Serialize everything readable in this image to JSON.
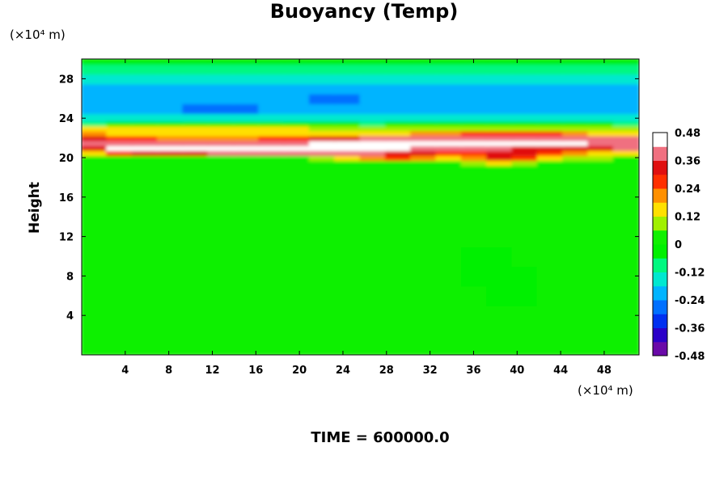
{
  "title": "Buoyancy (Temp)",
  "time_label": "TIME = 600000.0",
  "chart_data": {
    "type": "heatmap",
    "title": "Buoyancy (Temp)",
    "ylabel": "Height",
    "xunit": "(×10⁴ m)",
    "yunit": "(×10⁴ m)",
    "xlim": [
      0,
      51.2
    ],
    "ylim": [
      0,
      30
    ],
    "xticks": [
      4,
      8,
      12,
      16,
      20,
      24,
      28,
      32,
      36,
      40,
      44,
      48
    ],
    "yticks": [
      4,
      8,
      12,
      16,
      20,
      24,
      28
    ],
    "x_dim": 22,
    "y_height": [
      0,
      2,
      4,
      6,
      8,
      10,
      12,
      14,
      16,
      17,
      18,
      19,
      19.5,
      20,
      20.5,
      21,
      21.5,
      22,
      22.5,
      23,
      23.5,
      24,
      25,
      26,
      27,
      28,
      29,
      30
    ],
    "colorbar": {
      "levels": [
        0.48,
        0.36,
        0.24,
        0.12,
        0,
        -0.12,
        -0.24,
        -0.36,
        -0.48
      ],
      "min": -0.48,
      "max": 0.48,
      "colors": [
        "#6a0aa8",
        "#2b00c8",
        "#0030f0",
        "#0070ff",
        "#00b4ff",
        "#00e8d0",
        "#00f880",
        "#00f000",
        "#10f000",
        "#a0f000",
        "#ffe000",
        "#ff9000",
        "#ff3000",
        "#e01010",
        "#f07080",
        "#ffffff"
      ]
    },
    "grid": false,
    "values": [
      [
        0.0,
        0.0,
        0.0,
        0.0,
        0.0,
        0.0,
        0.0,
        0.0,
        0.0,
        0.0,
        0.0,
        0.0,
        0.0,
        0.0,
        0.0,
        0.0,
        0.0,
        0.0,
        0.0,
        0.0,
        0.0,
        0.0
      ],
      [
        0.0,
        0.0,
        0.0,
        0.0,
        0.0,
        0.0,
        0.0,
        0.0,
        0.0,
        0.0,
        0.0,
        0.0,
        0.0,
        0.0,
        0.0,
        0.0,
        0.0,
        0.0,
        0.0,
        0.0,
        0.0,
        0.0
      ],
      [
        0.0,
        0.0,
        0.0,
        0.0,
        0.0,
        0.0,
        0.0,
        0.0,
        0.0,
        0.0,
        0.0,
        0.0,
        0.0,
        0.0,
        0.0,
        0.0,
        0.0,
        0.0,
        0.0,
        0.0,
        0.0,
        0.0
      ],
      [
        0.0,
        0.0,
        0.0,
        0.0,
        0.0,
        0.0,
        0.0,
        0.0,
        0.0,
        0.0,
        0.0,
        0.0,
        0.0,
        0.0,
        0.0,
        0.0,
        -0.01,
        -0.02,
        0.0,
        0.0,
        0.0,
        0.0
      ],
      [
        0.0,
        0.0,
        0.0,
        0.0,
        0.0,
        0.0,
        0.0,
        0.0,
        0.0,
        0.0,
        0.0,
        0.0,
        0.0,
        0.0,
        0.0,
        -0.02,
        -0.03,
        -0.02,
        0.0,
        0.0,
        0.0,
        0.0
      ],
      [
        0.0,
        0.0,
        0.0,
        0.0,
        0.0,
        0.0,
        0.0,
        0.0,
        0.0,
        0.0,
        0.0,
        0.0,
        0.0,
        0.0,
        0.0,
        -0.02,
        -0.02,
        0.0,
        0.0,
        0.0,
        0.0,
        0.0
      ],
      [
        0.0,
        0.0,
        0.0,
        0.0,
        0.0,
        0.0,
        0.0,
        0.0,
        0.0,
        0.0,
        0.0,
        0.0,
        0.0,
        0.0,
        0.0,
        0.0,
        0.0,
        0.0,
        0.0,
        0.0,
        0.0,
        0.0
      ],
      [
        0.0,
        0.0,
        0.0,
        0.0,
        0.0,
        0.0,
        0.0,
        0.0,
        0.0,
        0.0,
        0.0,
        0.0,
        0.0,
        0.0,
        0.0,
        0.0,
        0.02,
        0.04,
        0.0,
        0.0,
        0.0,
        0.0
      ],
      [
        0.0,
        0.0,
        0.0,
        0.02,
        0.0,
        0.0,
        0.0,
        0.0,
        0.0,
        0.0,
        0.0,
        0.02,
        0.0,
        0.0,
        0.0,
        0.02,
        0.03,
        0.02,
        0.0,
        0.0,
        0.0,
        0.0
      ],
      [
        0.0,
        0.0,
        0.0,
        0.02,
        0.0,
        0.0,
        0.0,
        0.0,
        0.02,
        0.0,
        0.0,
        0.02,
        0.0,
        0.0,
        0.0,
        0.0,
        0.02,
        0.0,
        0.0,
        0.0,
        0.0,
        0.0
      ],
      [
        0.0,
        0.0,
        0.0,
        0.0,
        0.0,
        0.0,
        0.0,
        0.0,
        0.0,
        0.0,
        0.0,
        0.0,
        0.0,
        0.0,
        0.0,
        0.0,
        0.0,
        0.0,
        0.0,
        0.0,
        0.0,
        0.0
      ],
      [
        0.0,
        0.0,
        0.0,
        0.0,
        0.0,
        0.0,
        0.0,
        0.0,
        0.0,
        0.0,
        0.0,
        0.0,
        0.0,
        0.0,
        0.0,
        0.0,
        0.0,
        0.0,
        0.0,
        0.0,
        0.0,
        0.0
      ],
      [
        0.04,
        0.04,
        0.04,
        0.04,
        0.04,
        0.04,
        0.04,
        0.04,
        0.04,
        0.04,
        0.04,
        0.04,
        0.04,
        0.04,
        0.05,
        0.1,
        0.14,
        0.1,
        0.05,
        0.04,
        0.04,
        0.04
      ],
      [
        0.05,
        0.05,
        0.05,
        0.05,
        0.05,
        0.05,
        0.05,
        0.05,
        0.05,
        0.08,
        0.14,
        0.2,
        0.24,
        0.2,
        0.18,
        0.22,
        0.3,
        0.25,
        0.15,
        0.1,
        0.06,
        0.05
      ],
      [
        0.15,
        0.25,
        0.3,
        0.32,
        0.34,
        0.36,
        0.38,
        0.38,
        0.38,
        0.38,
        0.38,
        0.36,
        0.34,
        0.3,
        0.26,
        0.28,
        0.34,
        0.3,
        0.26,
        0.22,
        0.18,
        0.15
      ],
      [
        0.32,
        0.46,
        0.48,
        0.48,
        0.48,
        0.48,
        0.48,
        0.48,
        0.46,
        0.44,
        0.44,
        0.44,
        0.44,
        0.42,
        0.42,
        0.38,
        0.36,
        0.32,
        0.3,
        0.32,
        0.34,
        0.36
      ],
      [
        0.36,
        0.42,
        0.42,
        0.4,
        0.38,
        0.38,
        0.38,
        0.4,
        0.42,
        0.44,
        0.46,
        0.48,
        0.48,
        0.48,
        0.48,
        0.48,
        0.48,
        0.48,
        0.46,
        0.44,
        0.42,
        0.36
      ],
      [
        0.34,
        0.28,
        0.24,
        0.2,
        0.2,
        0.2,
        0.2,
        0.24,
        0.26,
        0.3,
        0.34,
        0.38,
        0.4,
        0.42,
        0.42,
        0.42,
        0.42,
        0.42,
        0.42,
        0.4,
        0.38,
        0.36
      ],
      [
        0.22,
        0.16,
        0.14,
        0.12,
        0.14,
        0.14,
        0.14,
        0.14,
        0.12,
        0.12,
        0.14,
        0.16,
        0.18,
        0.2,
        0.2,
        0.24,
        0.26,
        0.26,
        0.24,
        0.2,
        0.16,
        0.12
      ],
      [
        0.14,
        0.12,
        0.12,
        0.14,
        0.16,
        0.18,
        0.18,
        0.16,
        0.12,
        0.1,
        0.08,
        0.08,
        0.08,
        0.08,
        0.08,
        0.08,
        0.1,
        0.1,
        0.08,
        0.08,
        0.08,
        0.06
      ],
      [
        -0.08,
        -0.06,
        -0.04,
        -0.02,
        0.0,
        0.0,
        0.0,
        0.0,
        -0.02,
        -0.04,
        -0.06,
        -0.08,
        -0.06,
        -0.06,
        -0.04,
        -0.04,
        -0.04,
        -0.04,
        -0.04,
        -0.06,
        -0.06,
        -0.08
      ],
      [
        -0.16,
        -0.16,
        -0.16,
        -0.14,
        -0.14,
        -0.14,
        -0.16,
        -0.16,
        -0.16,
        -0.16,
        -0.16,
        -0.16,
        -0.16,
        -0.16,
        -0.16,
        -0.16,
        -0.16,
        -0.18,
        -0.18,
        -0.16,
        -0.16,
        -0.16
      ],
      [
        -0.2,
        -0.2,
        -0.2,
        -0.22,
        -0.26,
        -0.28,
        -0.26,
        -0.22,
        -0.22,
        -0.22,
        -0.2,
        -0.2,
        -0.2,
        -0.2,
        -0.2,
        -0.2,
        -0.22,
        -0.24,
        -0.22,
        -0.2,
        -0.2,
        -0.2
      ],
      [
        -0.22,
        -0.22,
        -0.22,
        -0.22,
        -0.22,
        -0.22,
        -0.22,
        -0.24,
        -0.24,
        -0.26,
        -0.26,
        -0.24,
        -0.22,
        -0.22,
        -0.22,
        -0.22,
        -0.22,
        -0.22,
        -0.22,
        -0.22,
        -0.22,
        -0.22
      ],
      [
        -0.22,
        -0.22,
        -0.22,
        -0.22,
        -0.22,
        -0.22,
        -0.22,
        -0.22,
        -0.22,
        -0.22,
        -0.22,
        -0.22,
        -0.22,
        -0.22,
        -0.22,
        -0.22,
        -0.22,
        -0.22,
        -0.22,
        -0.22,
        -0.22,
        -0.22
      ],
      [
        -0.16,
        -0.16,
        -0.16,
        -0.16,
        -0.16,
        -0.16,
        -0.16,
        -0.16,
        -0.16,
        -0.16,
        -0.16,
        -0.16,
        -0.16,
        -0.16,
        -0.16,
        -0.16,
        -0.16,
        -0.16,
        -0.16,
        -0.16,
        -0.16,
        -0.16
      ],
      [
        -0.08,
        -0.08,
        -0.08,
        -0.08,
        -0.08,
        -0.08,
        -0.08,
        -0.08,
        -0.08,
        -0.08,
        -0.08,
        -0.08,
        -0.08,
        -0.08,
        -0.08,
        -0.08,
        -0.08,
        -0.08,
        -0.08,
        -0.08,
        -0.08,
        -0.08
      ],
      [
        -0.04,
        -0.04,
        -0.04,
        -0.04,
        -0.04,
        -0.04,
        -0.04,
        -0.04,
        -0.04,
        -0.04,
        -0.04,
        -0.04,
        -0.04,
        -0.04,
        -0.04,
        -0.04,
        -0.04,
        -0.04,
        -0.04,
        -0.04,
        -0.04,
        -0.04
      ]
    ]
  }
}
